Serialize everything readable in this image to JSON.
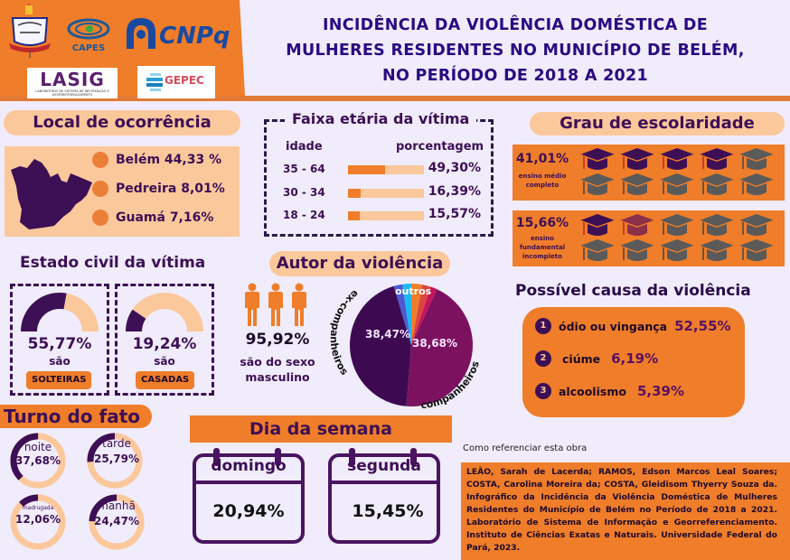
{
  "header": {
    "title": "INCIDÊNCIA DA VIOLÊNCIA DOMÉSTICA DE MULHERES RESIDENTES NO MUNICÍPIO DE BELÉM, NO PERÍODO DE 2018 A 2021",
    "logos": {
      "capes": "CAPES",
      "cnpq": "CNPq",
      "lasig": "LASIG",
      "lasig_sub": "LABORATÓRIO DE SISTEMA DE INFORMAÇÃO E GEORREFERENCIAMENTO",
      "gepec": "GEPEC"
    }
  },
  "local": {
    "title": "Local de ocorrência",
    "items": [
      {
        "label": "Belém 44,33 %",
        "name": "Belém",
        "value": 44.33
      },
      {
        "label": "Pedreira 8,01%",
        "name": "Pedreira",
        "value": 8.01
      },
      {
        "label": "Guamá 7,16%",
        "name": "Guamá",
        "value": 7.16
      }
    ]
  },
  "faixa": {
    "title": "Faixa etária da vítima",
    "col_idade": "idade",
    "col_pct": "porcentagem",
    "rows": [
      {
        "idade": "35 - 64",
        "pct_label": "49,30%",
        "pct": 49.3
      },
      {
        "idade": "30 - 34",
        "pct_label": "16,39%",
        "pct": 16.39
      },
      {
        "idade": "18 - 24",
        "pct_label": "15,57%",
        "pct": 15.57
      }
    ]
  },
  "grau": {
    "title": "Grau de escolaridade",
    "items": [
      {
        "pct_label": "41,01%",
        "pct": 41.01,
        "desc": "ensino médio completo",
        "filled_caps": 4
      },
      {
        "pct_label": "15,66%",
        "pct": 15.66,
        "desc": "ensino fundamental incompleto",
        "filled_caps": 1.5
      }
    ],
    "colors": {
      "filled": "#3d0f55",
      "partial": "#8b2f4a",
      "empty": "#5a5a5a"
    }
  },
  "estado": {
    "title": "Estado civil da vítima",
    "items": [
      {
        "pct_label": "55,77%",
        "pct": 55.77,
        "sao": "são",
        "badge": "SOLTEIRAS"
      },
      {
        "pct_label": "19,24%",
        "pct": 19.24,
        "sao": "são",
        "badge": "CASADAS"
      }
    ]
  },
  "autor": {
    "title": "Autor da violência",
    "male_pct_label": "95,92%",
    "male_pct": 95.92,
    "male_desc": "são do sexo masculino",
    "pie_labels": {
      "ex": "ex-companheiros",
      "comp": "companheiros",
      "outros": "outros"
    }
  },
  "chart_data": {
    "type": "pie",
    "title": "Autor da violência",
    "slices": [
      {
        "name": "companheiros",
        "value": 38.68,
        "label": "38,68%",
        "color": "#7c1160"
      },
      {
        "name": "ex-companheiros",
        "value": 38.47,
        "label": "38,47%",
        "color": "#3d0a52"
      },
      {
        "name": "outros (azul escuro)",
        "value": 2.0,
        "label": "",
        "color": "#4a5bd1"
      },
      {
        "name": "outros (azul claro)",
        "value": 2.0,
        "label": "",
        "color": "#1fb8ef"
      },
      {
        "name": "outros (laranja)",
        "value": 2.5,
        "label": "",
        "color": "#ef7d2a"
      },
      {
        "name": "outros (vermelho)",
        "value": 2.0,
        "label": "",
        "color": "#d9473e"
      },
      {
        "name": "outros (rosa)",
        "value": 1.5,
        "label": "",
        "color": "#c4145a"
      }
    ],
    "outros_label": "outros"
  },
  "causa": {
    "title": "Possível causa da violência",
    "items": [
      {
        "num": "1",
        "label": "ódio ou vingança",
        "val": "52,55%"
      },
      {
        "num": "2",
        "label": "ciúme",
        "val": "6,19%"
      },
      {
        "num": "3",
        "label": "alcoolismo",
        "val": "5,39%"
      }
    ]
  },
  "turno": {
    "title": "Turno do fato",
    "items": [
      {
        "label": "noite",
        "val": "37,68%",
        "pct": 37.68
      },
      {
        "label": "tarde",
        "val": "25,79%",
        "pct": 25.79
      },
      {
        "label": "madrugada",
        "val": "12,06%",
        "pct": 12.06
      },
      {
        "label": "manhã",
        "val": "24,47%",
        "pct": 24.47
      }
    ]
  },
  "dia": {
    "title": "Dia da semana",
    "items": [
      {
        "label": "domingo",
        "val": "20,94%"
      },
      {
        "label": "segunda",
        "val": "15,45%"
      }
    ]
  },
  "referencia": {
    "title": "Como referenciar esta obra",
    "text": "LEÃO, Sarah de Lacerda; RAMOS, Edson Marcos Leal Soares; COSTA, Carolina Moreira da; COSTA, Gleidisom Thyerry Souza da. Infográfico da Incidência da Violência Doméstica de Mulheres Residentes do Município de Belém no Período de 2018 a 2021. Laboratório de Sistema de Informação e Georreferenciamento. Instituto de Ciências Exatas e Naturais. Universidade Federal do Pará, 2023."
  }
}
